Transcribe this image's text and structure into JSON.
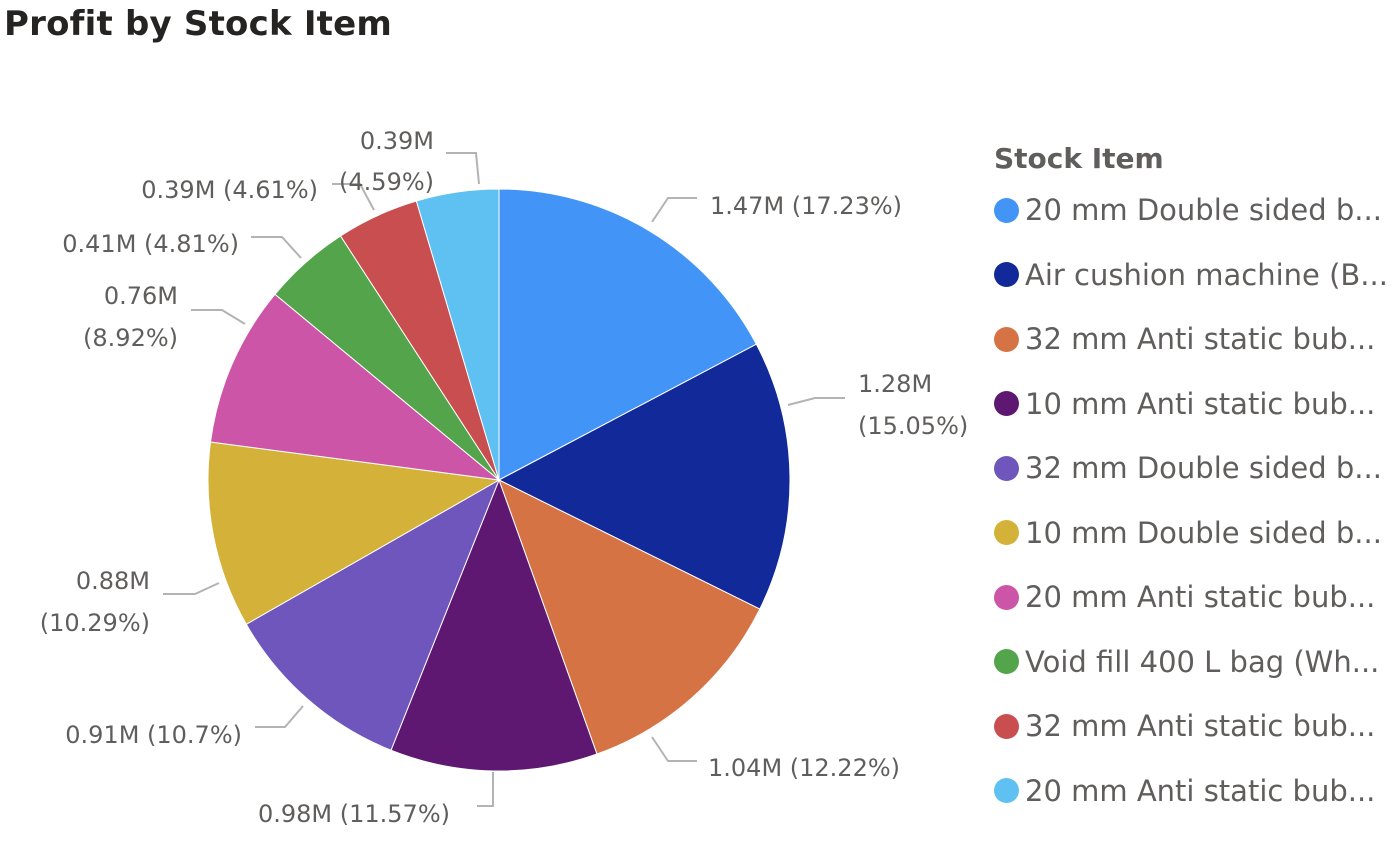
{
  "chart_data": {
    "type": "pie",
    "title": "Profit by Stock Item",
    "legend_title": "Stock Item",
    "legend_position": "right",
    "slices": [
      {
        "label": "20 mm Double sided b...",
        "value": 1.47,
        "value_label": "1.47M",
        "percent_label": "(17.23%)",
        "color": "#4394F7"
      },
      {
        "label": "Air cushion machine (B...",
        "value": 1.28,
        "value_label": "1.28M",
        "percent_label": "(15.05%)",
        "color": "#12299A"
      },
      {
        "label": "32 mm Anti static bub...",
        "value": 1.04,
        "value_label": "1.04M",
        "percent_label": "(12.22%)",
        "color": "#D67345"
      },
      {
        "label": "10 mm Anti static bub...",
        "value": 0.98,
        "value_label": "0.98M",
        "percent_label": "(11.57%)",
        "color": "#5E1871"
      },
      {
        "label": "32 mm Double sided b...",
        "value": 0.91,
        "value_label": "0.91M",
        "percent_label": "(10.7%)",
        "color": "#6F56BC"
      },
      {
        "label": "10 mm Double sided b...",
        "value": 0.88,
        "value_label": "0.88M",
        "percent_label": "(10.29%)",
        "color": "#D4B23A"
      },
      {
        "label": "20 mm Anti static bub...",
        "value": 0.76,
        "value_label": "0.76M",
        "percent_label": "(8.92%)",
        "color": "#CD55A7"
      },
      {
        "label": "Void fill 400 L bag (Wh...",
        "value": 0.41,
        "value_label": "0.41M",
        "percent_label": "(4.81%)",
        "color": "#54A44C"
      },
      {
        "label": "32 mm Anti static bub...",
        "value": 0.39,
        "value_label": "0.39M",
        "percent_label": "(4.61%)",
        "color": "#C84E50"
      },
      {
        "label": "20 mm Anti static bub...",
        "value": 0.39,
        "value_label": "0.39M",
        "percent_label": "(4.59%)",
        "color": "#5FC1F1"
      }
    ]
  }
}
